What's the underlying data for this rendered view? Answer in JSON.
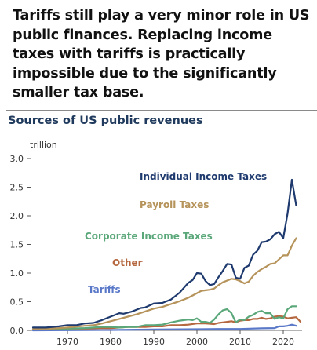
{
  "headline": {
    "lines": [
      "Tariffs still play a very minor role in US",
      "public finances. Replacing income",
      "taxes with tariffs is practically",
      "impossible due to the significantly",
      "smaller tax base."
    ]
  },
  "chart_data": {
    "type": "line",
    "title": "Sources of US public revenues",
    "ylabel": "trillion",
    "xlabel": "",
    "xlim": [
      1962,
      2024
    ],
    "ylim": [
      0,
      3.0
    ],
    "yticks": [
      {
        "value": 0.0,
        "label": "0.0"
      },
      {
        "value": 0.5,
        "label": "0.5"
      },
      {
        "value": 1.0,
        "label": "1.0"
      },
      {
        "value": 1.5,
        "label": "1.5"
      },
      {
        "value": 2.0,
        "label": "2.0"
      },
      {
        "value": 2.5,
        "label": "2.5"
      },
      {
        "value": 3.0,
        "label": "3.0"
      }
    ],
    "xticks": [
      {
        "value": 1970,
        "label": "1970"
      },
      {
        "value": 1980,
        "label": "1980"
      },
      {
        "value": 1990,
        "label": "1990"
      },
      {
        "value": 2000,
        "label": "2000"
      },
      {
        "value": 2010,
        "label": "2010"
      },
      {
        "value": 2020,
        "label": "2020"
      }
    ],
    "grid": false,
    "legend": "inline labels",
    "series": [
      {
        "name": "Individual Income Taxes",
        "color": "#1f3a6e",
        "points": [
          [
            1962,
            0.05
          ],
          [
            1965,
            0.05
          ],
          [
            1968,
            0.07
          ],
          [
            1970,
            0.09
          ],
          [
            1972,
            0.09
          ],
          [
            1974,
            0.12
          ],
          [
            1976,
            0.13
          ],
          [
            1978,
            0.18
          ],
          [
            1980,
            0.24
          ],
          [
            1982,
            0.3
          ],
          [
            1983,
            0.29
          ],
          [
            1985,
            0.33
          ],
          [
            1987,
            0.39
          ],
          [
            1988,
            0.4
          ],
          [
            1990,
            0.47
          ],
          [
            1992,
            0.48
          ],
          [
            1994,
            0.54
          ],
          [
            1996,
            0.66
          ],
          [
            1998,
            0.83
          ],
          [
            1999,
            0.88
          ],
          [
            2000,
            1.0
          ],
          [
            2001,
            0.99
          ],
          [
            2002,
            0.86
          ],
          [
            2003,
            0.79
          ],
          [
            2004,
            0.81
          ],
          [
            2005,
            0.93
          ],
          [
            2006,
            1.04
          ],
          [
            2007,
            1.16
          ],
          [
            2008,
            1.15
          ],
          [
            2009,
            0.92
          ],
          [
            2010,
            0.9
          ],
          [
            2011,
            1.09
          ],
          [
            2012,
            1.13
          ],
          [
            2013,
            1.32
          ],
          [
            2014,
            1.39
          ],
          [
            2015,
            1.54
          ],
          [
            2016,
            1.55
          ],
          [
            2017,
            1.59
          ],
          [
            2018,
            1.68
          ],
          [
            2019,
            1.72
          ],
          [
            2020,
            1.61
          ],
          [
            2021,
            2.04
          ],
          [
            2022,
            2.63
          ],
          [
            2023,
            2.18
          ]
        ]
      },
      {
        "name": "Payroll Taxes",
        "color": "#b5935a",
        "points": [
          [
            1962,
            0.02
          ],
          [
            1966,
            0.03
          ],
          [
            1970,
            0.05
          ],
          [
            1974,
            0.08
          ],
          [
            1976,
            0.09
          ],
          [
            1978,
            0.12
          ],
          [
            1980,
            0.16
          ],
          [
            1982,
            0.2
          ],
          [
            1984,
            0.24
          ],
          [
            1986,
            0.28
          ],
          [
            1988,
            0.33
          ],
          [
            1990,
            0.38
          ],
          [
            1992,
            0.41
          ],
          [
            1994,
            0.46
          ],
          [
            1996,
            0.51
          ],
          [
            1998,
            0.57
          ],
          [
            2000,
            0.65
          ],
          [
            2001,
            0.69
          ],
          [
            2002,
            0.7
          ],
          [
            2003,
            0.71
          ],
          [
            2004,
            0.73
          ],
          [
            2005,
            0.79
          ],
          [
            2006,
            0.84
          ],
          [
            2007,
            0.87
          ],
          [
            2008,
            0.9
          ],
          [
            2009,
            0.89
          ],
          [
            2010,
            0.86
          ],
          [
            2011,
            0.82
          ],
          [
            2012,
            0.85
          ],
          [
            2013,
            0.95
          ],
          [
            2014,
            1.02
          ],
          [
            2015,
            1.07
          ],
          [
            2016,
            1.11
          ],
          [
            2017,
            1.16
          ],
          [
            2018,
            1.17
          ],
          [
            2019,
            1.24
          ],
          [
            2020,
            1.31
          ],
          [
            2021,
            1.31
          ],
          [
            2022,
            1.48
          ],
          [
            2023,
            1.61
          ]
        ]
      },
      {
        "name": "Corporate Income Taxes",
        "color": "#5aa77a",
        "points": [
          [
            1962,
            0.02
          ],
          [
            1966,
            0.03
          ],
          [
            1970,
            0.03
          ],
          [
            1974,
            0.04
          ],
          [
            1978,
            0.06
          ],
          [
            1980,
            0.06
          ],
          [
            1982,
            0.05
          ],
          [
            1984,
            0.06
          ],
          [
            1986,
            0.06
          ],
          [
            1988,
            0.09
          ],
          [
            1990,
            0.09
          ],
          [
            1992,
            0.1
          ],
          [
            1994,
            0.14
          ],
          [
            1996,
            0.17
          ],
          [
            1998,
            0.19
          ],
          [
            1999,
            0.18
          ],
          [
            2000,
            0.21
          ],
          [
            2001,
            0.15
          ],
          [
            2002,
            0.15
          ],
          [
            2003,
            0.13
          ],
          [
            2004,
            0.19
          ],
          [
            2005,
            0.28
          ],
          [
            2006,
            0.35
          ],
          [
            2007,
            0.37
          ],
          [
            2008,
            0.3
          ],
          [
            2009,
            0.14
          ],
          [
            2010,
            0.19
          ],
          [
            2011,
            0.18
          ],
          [
            2012,
            0.24
          ],
          [
            2013,
            0.27
          ],
          [
            2014,
            0.32
          ],
          [
            2015,
            0.34
          ],
          [
            2016,
            0.3
          ],
          [
            2017,
            0.3
          ],
          [
            2018,
            0.2
          ],
          [
            2019,
            0.23
          ],
          [
            2020,
            0.21
          ],
          [
            2021,
            0.37
          ],
          [
            2022,
            0.42
          ],
          [
            2023,
            0.42
          ]
        ]
      },
      {
        "name": "Other",
        "color": "#b5683f",
        "points": [
          [
            1962,
            0.02
          ],
          [
            1966,
            0.02
          ],
          [
            1970,
            0.03
          ],
          [
            1974,
            0.03
          ],
          [
            1978,
            0.04
          ],
          [
            1980,
            0.04
          ],
          [
            1982,
            0.05
          ],
          [
            1984,
            0.06
          ],
          [
            1986,
            0.06
          ],
          [
            1988,
            0.06
          ],
          [
            1990,
            0.07
          ],
          [
            1992,
            0.07
          ],
          [
            1994,
            0.09
          ],
          [
            1996,
            0.09
          ],
          [
            1998,
            0.1
          ],
          [
            2000,
            0.12
          ],
          [
            2002,
            0.12
          ],
          [
            2004,
            0.11
          ],
          [
            2005,
            0.13
          ],
          [
            2006,
            0.14
          ],
          [
            2007,
            0.15
          ],
          [
            2008,
            0.16
          ],
          [
            2009,
            0.14
          ],
          [
            2010,
            0.17
          ],
          [
            2011,
            0.18
          ],
          [
            2012,
            0.18
          ],
          [
            2013,
            0.2
          ],
          [
            2014,
            0.2
          ],
          [
            2015,
            0.22
          ],
          [
            2016,
            0.2
          ],
          [
            2017,
            0.21
          ],
          [
            2018,
            0.24
          ],
          [
            2019,
            0.25
          ],
          [
            2020,
            0.24
          ],
          [
            2021,
            0.21
          ],
          [
            2022,
            0.22
          ],
          [
            2023,
            0.23
          ],
          [
            2024,
            0.15
          ]
        ]
      },
      {
        "name": "Tariffs",
        "color": "#5a78c8",
        "points": [
          [
            1962,
            0.0
          ],
          [
            1970,
            0.003
          ],
          [
            1980,
            0.007
          ],
          [
            1990,
            0.015
          ],
          [
            2000,
            0.02
          ],
          [
            2005,
            0.025
          ],
          [
            2010,
            0.025
          ],
          [
            2015,
            0.035
          ],
          [
            2018,
            0.04
          ],
          [
            2019,
            0.07
          ],
          [
            2020,
            0.07
          ],
          [
            2021,
            0.08
          ],
          [
            2022,
            0.1
          ],
          [
            2023,
            0.08
          ]
        ]
      }
    ]
  }
}
